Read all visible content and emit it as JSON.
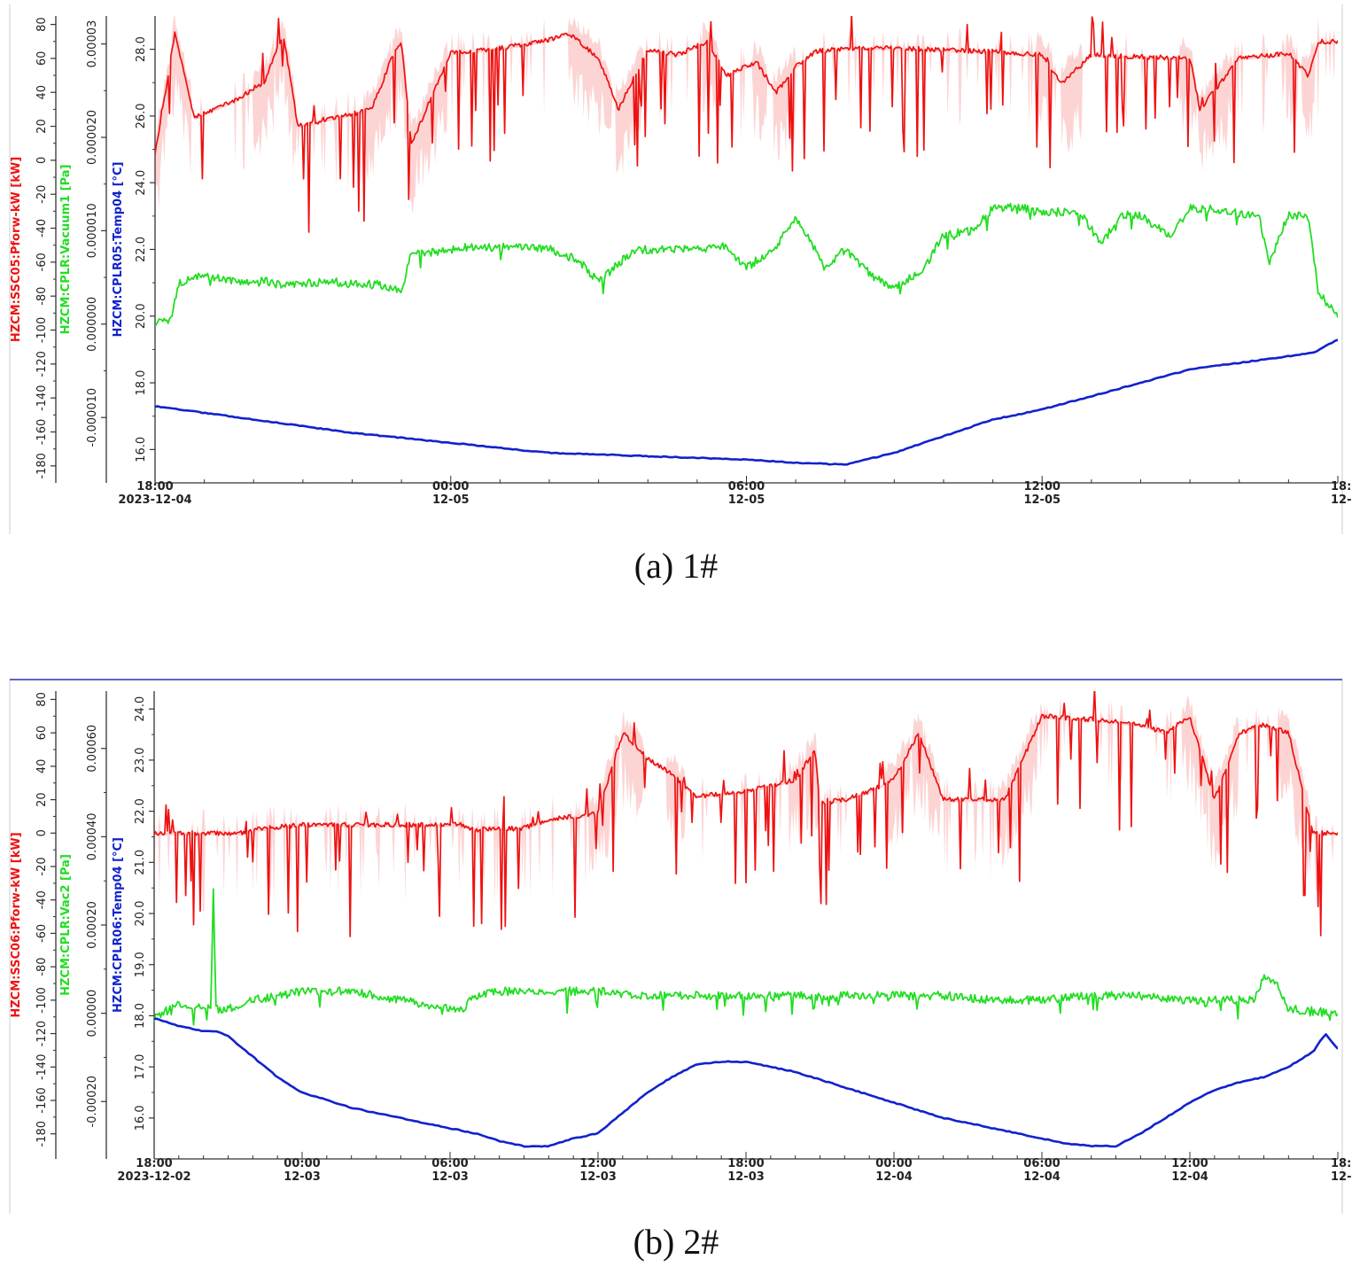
{
  "chart_data": [
    {
      "type": "line",
      "caption": "(a)  1#",
      "x_labels": [
        {
          "hours": 0,
          "time": "18:00",
          "date": "2023-12-04"
        },
        {
          "hours": 6,
          "time": "00:00",
          "date": "12-05"
        },
        {
          "hours": 12,
          "time": "06:00",
          "date": "12-05"
        },
        {
          "hours": 18,
          "time": "12:00",
          "date": "12-05"
        },
        {
          "hours": 24,
          "time": "18:",
          "date": "12-"
        }
      ],
      "xlim": [
        0,
        24
      ],
      "axes": [
        {
          "name": "HZCM:SSC05:Pforw-kW [kW]",
          "color": "#ee1111",
          "ylim": [
            -190,
            85
          ],
          "ticks": [
            80,
            60,
            40,
            20,
            0,
            -20,
            -40,
            -60,
            -80,
            -100,
            -120,
            -140,
            -160,
            -180
          ],
          "tick_labels": [
            "80",
            "60",
            "40",
            "20",
            "0",
            "-20",
            "-40",
            "-60",
            "-80",
            "-100",
            "-120",
            "-140",
            "-160",
            "-180"
          ]
        },
        {
          "name": "HZCM:CPLR:Vacuum1 [Pa]",
          "color": "#22dd22",
          "ylim": [
            -1.7e-05,
            3.3e-05
          ],
          "ticks": [
            3e-05,
            2e-05,
            1e-05,
            0.0,
            -1e-05
          ],
          "tick_labels": [
            "0.00003",
            "0.000020",
            "0.000010",
            "0.000000",
            "-0.000010"
          ]
        },
        {
          "name": "HZCM:CPLR05:Temp04 [°C]",
          "color": "#1122cc",
          "ylim": [
            15.0,
            29.0
          ],
          "ticks": [
            28,
            26,
            24,
            22,
            20,
            18,
            16
          ],
          "tick_labels": [
            "28.0",
            "26.0",
            "24.0",
            "22.0",
            "20.0",
            "18.0",
            "16.0"
          ]
        }
      ],
      "series": [
        {
          "name": "HZCM:SSC05:Pforw-kW",
          "axis": 0,
          "color": "#ee1111",
          "style": "noisy-step",
          "x": [
            0,
            0.1,
            0.4,
            0.8,
            1.6,
            2.2,
            2.6,
            2.9,
            4.4,
            4.8,
            5.0,
            5.2,
            6.0,
            7.0,
            8.0,
            8.4,
            9.0,
            9.4,
            10.0,
            10.6,
            11.2,
            11.6,
            12.2,
            12.6,
            13.0,
            13.4,
            14.0,
            15.0,
            16.0,
            17.0,
            18.0,
            18.4,
            19.0,
            20.0,
            21.0,
            21.2,
            22.0,
            23.0,
            23.4,
            23.6,
            24
          ],
          "y": [
            5,
            20,
            75,
            25,
            35,
            45,
            75,
            20,
            30,
            60,
            70,
            10,
            63,
            66,
            71,
            75,
            60,
            30,
            65,
            62,
            70,
            50,
            58,
            40,
            55,
            64,
            66,
            66,
            65,
            64,
            62,
            45,
            62,
            61,
            60,
            30,
            60,
            63,
            50,
            70,
            70
          ]
        },
        {
          "name": "HZCM:CPLR:Vacuum1",
          "axis": 1,
          "color": "#22dd22",
          "style": "noisy",
          "x": [
            0,
            0.3,
            0.5,
            1.0,
            1.5,
            2.0,
            2.3,
            2.6,
            3.0,
            3.5,
            4.0,
            4.6,
            5.0,
            5.2,
            5.8,
            6.2,
            7.0,
            8.0,
            8.6,
            9.0,
            9.4,
            9.8,
            10.2,
            11.0,
            11.6,
            12.0,
            12.6,
            13.0,
            13.6,
            14.0,
            14.6,
            15.0,
            15.6,
            16.0,
            16.6,
            17.0,
            17.6,
            18.0,
            18.4,
            18.8,
            19.2,
            19.6,
            20.0,
            20.6,
            21.0,
            21.6,
            22.0,
            22.4,
            22.6,
            23.0,
            23.4,
            23.6,
            24
          ],
          "y": [
            2e-07,
            3e-07,
            4.5e-06,
            5.2e-06,
            4.7e-06,
            4.5e-06,
            4.6e-06,
            4e-06,
            4.3e-06,
            4.6e-06,
            4.3e-06,
            4.2e-06,
            3.6e-06,
            7.5e-06,
            7.8e-06,
            8.2e-06,
            8.2e-06,
            8.1e-06,
            6.8e-06,
            4.5e-06,
            6.5e-06,
            8e-06,
            8e-06,
            8e-06,
            8.3e-06,
            6e-06,
            8.3e-06,
            1.15e-05,
            6e-06,
            8e-06,
            5e-06,
            3.8e-06,
            6e-06,
            9.5e-06,
            1e-05,
            1.25e-05,
            1.25e-05,
            1.2e-05,
            1.2e-05,
            1.18e-05,
            8.5e-06,
            1.18e-05,
            1.16e-05,
            9.5e-06,
            1.25e-05,
            1.22e-05,
            1.18e-05,
            1.18e-05,
            6.5e-06,
            1.18e-05,
            1.15e-05,
            3.5e-06,
            7e-07
          ]
        },
        {
          "name": "HZCM:CPLR05:Temp04",
          "axis": 2,
          "color": "#1122cc",
          "style": "smooth",
          "x": [
            0,
            1,
            2,
            3,
            4,
            5,
            6,
            7,
            8,
            9,
            10,
            11,
            12,
            13,
            14,
            15,
            16,
            17,
            18,
            19,
            20,
            21,
            22,
            23,
            23.5,
            24
          ],
          "y": [
            17.3,
            17.1,
            16.9,
            16.7,
            16.5,
            16.35,
            16.2,
            16.05,
            15.9,
            15.85,
            15.8,
            15.75,
            15.7,
            15.6,
            15.55,
            15.9,
            16.4,
            16.9,
            17.2,
            17.6,
            18.0,
            18.4,
            18.6,
            18.8,
            18.9,
            19.3
          ]
        }
      ]
    },
    {
      "type": "line",
      "caption": "(b)  2#",
      "x_labels": [
        {
          "hours": 0,
          "time": "18:00",
          "date": "2023-12-02"
        },
        {
          "hours": 6,
          "time": "00:00",
          "date": "12-03"
        },
        {
          "hours": 12,
          "time": "06:00",
          "date": "12-03"
        },
        {
          "hours": 18,
          "time": "12:00",
          "date": "12-03"
        },
        {
          "hours": 24,
          "time": "18:00",
          "date": "12-03"
        },
        {
          "hours": 30,
          "time": "00:00",
          "date": "12-04"
        },
        {
          "hours": 36,
          "time": "06:00",
          "date": "12-04"
        },
        {
          "hours": 42,
          "time": "12:00",
          "date": "12-04"
        },
        {
          "hours": 48,
          "time": "18:",
          "date": "12-"
        }
      ],
      "xlim": [
        0,
        48
      ],
      "axes": [
        {
          "name": "HZCM:SSC06:Pforw-kW [kW]",
          "color": "#ee1111",
          "ylim": [
            -195,
            85
          ],
          "ticks": [
            80,
            60,
            40,
            20,
            0,
            -20,
            -40,
            -60,
            -80,
            -100,
            -120,
            -140,
            -160,
            -180
          ],
          "tick_labels": [
            "80",
            "60",
            "40",
            "20",
            "0",
            "-20",
            "-40",
            "-60",
            "-80",
            "-100",
            "-120",
            "-140",
            "-160",
            "-180"
          ]
        },
        {
          "name": "HZCM:CPLR:Vac2 [Pa]",
          "color": "#22dd22",
          "ylim": [
            -0.00033,
            0.00073
          ],
          "ticks": [
            0.0006,
            0.0004,
            0.0002,
            0.0,
            -0.0002
          ],
          "tick_labels": [
            "0.00060",
            "0.00040",
            "0.00020",
            "0.00000",
            "-0.00020"
          ]
        },
        {
          "name": "HZCM:CPLR06:Temp04 [°C]",
          "color": "#1122cc",
          "ylim": [
            15.2,
            24.35
          ],
          "ticks": [
            24,
            23,
            22,
            21,
            20,
            19,
            18,
            17,
            16
          ],
          "tick_labels": [
            "24.0",
            "23.0",
            "22.0",
            "21.0",
            "20.0",
            "19.0",
            "18.0",
            "17.0",
            "16.0"
          ]
        }
      ],
      "series": [
        {
          "name": "HZCM:SSC06:Pforw-kW",
          "axis": 0,
          "color": "#ee1111",
          "style": "noisy-step",
          "x": [
            0,
            3.5,
            4.0,
            6.0,
            10.0,
            12.5,
            13.0,
            15.0,
            16.0,
            18.0,
            19.0,
            20.0,
            21.0,
            22.0,
            24.0,
            26.0,
            26.8,
            27.0,
            28.0,
            29.0,
            30.0,
            31.0,
            32.0,
            33.0,
            34.0,
            34.5,
            36.0,
            38.0,
            40.0,
            41.0,
            42.0,
            43.0,
            44.0,
            45.0,
            46.0,
            47.0,
            48.0
          ],
          "y": [
            0,
            0,
            2,
            5,
            5,
            5,
            2,
            3,
            8,
            12,
            60,
            45,
            35,
            22,
            25,
            32,
            50,
            18,
            20,
            25,
            32,
            60,
            20,
            20,
            20,
            20,
            70,
            68,
            65,
            60,
            70,
            20,
            60,
            65,
            60,
            0,
            0
          ]
        },
        {
          "name": "HZCM:CPLR:Vac2",
          "axis": 1,
          "color": "#22dd22",
          "style": "noisy",
          "x": [
            0,
            1,
            2,
            2.3,
            2.4,
            2.5,
            3.0,
            4.0,
            6.0,
            8.0,
            10.0,
            12.0,
            12.5,
            13.0,
            14.0,
            16.0,
            18.0,
            20.0,
            22.0,
            24.0,
            26.0,
            28.0,
            30.0,
            32.0,
            34.0,
            36.0,
            38.0,
            40.0,
            42.0,
            44.0,
            44.6,
            45.0,
            45.5,
            46.0,
            48.0
          ],
          "y": [
            -1e-05,
            2e-05,
            1e-05,
            2e-05,
            0.00028,
            1e-05,
            1e-05,
            3e-05,
            5e-05,
            5e-05,
            3e-05,
            1e-05,
            1e-05,
            4e-05,
            5e-05,
            5e-05,
            5e-05,
            4e-05,
            4e-05,
            4e-05,
            4e-05,
            4e-05,
            4e-05,
            4e-05,
            3e-05,
            3e-05,
            4e-05,
            4e-05,
            3e-05,
            3e-05,
            3e-05,
            8e-05,
            7e-05,
            1e-05,
            0.0
          ]
        },
        {
          "name": "HZCM:CPLR06:Temp04",
          "axis": 2,
          "color": "#1122cc",
          "style": "smooth",
          "x": [
            0,
            1,
            2,
            2.5,
            3.0,
            4.0,
            5.0,
            6.0,
            8.0,
            10.0,
            12.0,
            13.0,
            14.0,
            15.0,
            16.0,
            17.0,
            18.0,
            19.0,
            20.0,
            21.0,
            22.0,
            23.0,
            24.0,
            26.0,
            28.0,
            30.0,
            32.0,
            34.0,
            36.0,
            37.0,
            38.0,
            39.0,
            40.0,
            41.0,
            42.0,
            43.0,
            44.0,
            45.0,
            46.0,
            47.0,
            47.5,
            48.0
          ],
          "y": [
            17.95,
            17.8,
            17.7,
            17.7,
            17.6,
            17.2,
            16.8,
            16.5,
            16.2,
            16.0,
            15.8,
            15.7,
            15.55,
            15.45,
            15.45,
            15.6,
            15.7,
            16.1,
            16.5,
            16.8,
            17.05,
            17.1,
            17.1,
            16.9,
            16.6,
            16.3,
            16.0,
            15.8,
            15.6,
            15.5,
            15.45,
            15.45,
            15.7,
            16.0,
            16.3,
            16.55,
            16.7,
            16.8,
            17.0,
            17.3,
            17.65,
            17.35
          ]
        }
      ]
    }
  ]
}
